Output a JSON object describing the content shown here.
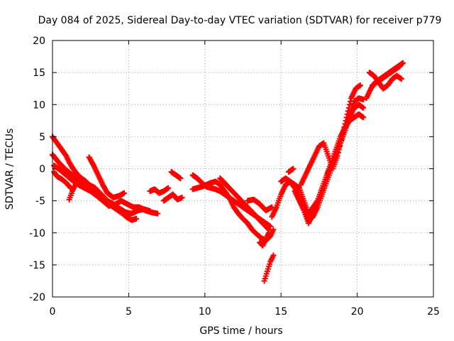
{
  "chart_data": {
    "type": "scatter",
    "title": "Day 084 of 2025, Sidereal Day-to-day VTEC variation (SDTVAR) for receiver p779",
    "xlabel": "GPS time / hours",
    "ylabel": "SDTVAR / TECUs",
    "xlim": [
      0,
      25
    ],
    "ylim": [
      -20,
      20
    ],
    "xticks": [
      "0",
      "5",
      "10",
      "15",
      "20",
      "25"
    ],
    "yticks": [
      "-20",
      "-15",
      "-10",
      "-5",
      "0",
      "5",
      "10",
      "15",
      "20"
    ],
    "grid": true,
    "marker": "+",
    "color": "#ff0000",
    "series": [
      {
        "tracks": [
          {
            "x": [
              0.0,
              0.3,
              0.6,
              0.9,
              1.1,
              1.3,
              1.6,
              1.9,
              2.2,
              2.5,
              2.8,
              3.1,
              3.4,
              3.7,
              4.0,
              4.3,
              4.6,
              4.9,
              5.2,
              5.5
            ],
            "y": [
              5.0,
              4.0,
              3.0,
              2.0,
              1.0,
              0.2,
              -0.8,
              -1.5,
              -2.0,
              -2.8,
              -3.5,
              -4.2,
              -5.0,
              -5.5,
              -6.0,
              -6.5,
              -7.0,
              -7.6,
              -8.0,
              -7.8
            ]
          },
          {
            "x": [
              0.0,
              0.4,
              0.8,
              1.2,
              1.6,
              2.0,
              2.4,
              2.8,
              3.2,
              3.6,
              4.0,
              4.4,
              4.8,
              5.2,
              5.6,
              6.0,
              6.4
            ],
            "y": [
              2.2,
              1.0,
              0.0,
              -0.8,
              -1.5,
              -2.0,
              -2.5,
              -3.0,
              -4.0,
              -5.0,
              -5.5,
              -6.2,
              -6.8,
              -7.0,
              -6.5,
              -6.3,
              -6.6
            ]
          },
          {
            "x": [
              0.1,
              0.5,
              0.9,
              1.3,
              1.7,
              2.1,
              2.5,
              2.9,
              3.3,
              3.7,
              4.1,
              4.5,
              4.9,
              5.3,
              5.7,
              6.1,
              6.5,
              6.9
            ],
            "y": [
              0.5,
              -0.2,
              -1.0,
              -1.8,
              -2.5,
              -3.0,
              -3.5,
              -4.2,
              -5.0,
              -5.8,
              -5.6,
              -5.0,
              -5.5,
              -6.0,
              -6.0,
              -6.5,
              -6.8,
              -7.0
            ]
          },
          {
            "x": [
              0.1,
              0.3,
              0.6,
              0.9,
              1.2
            ],
            "y": [
              -0.5,
              -1.2,
              -1.6,
              -2.2,
              -3.0
            ]
          },
          {
            "x": [
              1.1,
              1.3,
              1.5
            ],
            "y": [
              -4.8,
              -3.5,
              -2.5
            ]
          },
          {
            "x": [
              2.4,
              2.7,
              3.0,
              3.3,
              3.6,
              4.0,
              4.4,
              4.7
            ],
            "y": [
              1.8,
              0.5,
              -1.0,
              -2.5,
              -3.8,
              -4.5,
              -4.2,
              -3.8
            ]
          },
          {
            "x": [
              7.3,
              7.6,
              7.9,
              8.2,
              8.5
            ],
            "y": [
              -5.0,
              -4.5,
              -4.0,
              -4.8,
              -4.5
            ]
          },
          {
            "x": [
              6.4,
              6.7,
              7.0,
              7.3,
              7.6
            ],
            "y": [
              -3.5,
              -3.2,
              -3.8,
              -3.5,
              -3.0
            ]
          },
          {
            "x": [
              7.8,
              8.1,
              8.4
            ],
            "y": [
              -0.5,
              -1.0,
              -1.5
            ]
          },
          {
            "x": [
              9.2,
              9.5,
              9.8,
              10.1,
              10.4,
              10.7,
              11.0,
              11.3,
              11.6,
              11.9,
              12.2,
              12.5,
              12.8,
              13.1,
              13.4,
              13.7,
              14.0,
              14.3,
              14.5
            ],
            "y": [
              -3.2,
              -3.0,
              -2.8,
              -2.5,
              -2.2,
              -2.0,
              -2.5,
              -3.5,
              -4.5,
              -6.0,
              -7.0,
              -7.8,
              -8.5,
              -9.5,
              -10.2,
              -10.8,
              -11.2,
              -10.5,
              -9.5
            ]
          },
          {
            "x": [
              9.2,
              9.5,
              9.8,
              10.1,
              10.4,
              10.7,
              11.0,
              11.3,
              11.6,
              11.9,
              12.2,
              12.5,
              12.8,
              13.1,
              13.4,
              13.7,
              14.0,
              14.3
            ],
            "y": [
              -1.0,
              -1.5,
              -2.2,
              -2.8,
              -3.0,
              -3.2,
              -3.5,
              -4.0,
              -4.5,
              -5.0,
              -5.5,
              -6.0,
              -6.5,
              -7.0,
              -7.5,
              -8.0,
              -8.5,
              -9.0
            ]
          },
          {
            "x": [
              11.0,
              11.4,
              11.8,
              12.2,
              12.6,
              13.0,
              13.4,
              13.8,
              14.2
            ],
            "y": [
              -1.5,
              -2.5,
              -3.5,
              -4.5,
              -5.5,
              -6.5,
              -7.5,
              -8.5,
              -9.5
            ]
          },
          {
            "x": [
              12.8,
              13.2,
              13.6,
              14.0,
              14.4
            ],
            "y": [
              -5.0,
              -4.8,
              -5.5,
              -6.5,
              -6.0
            ]
          },
          {
            "x": [
              13.9,
              14.1,
              14.3,
              14.5
            ],
            "y": [
              -17.5,
              -16.0,
              -14.5,
              -13.5
            ]
          },
          {
            "x": [
              13.6,
              13.8,
              14.0,
              14.2
            ],
            "y": [
              -11.5,
              -12.0,
              -11.0,
              -10.0
            ]
          },
          {
            "x": [
              14.4,
              14.7,
              15.0,
              15.3,
              15.6,
              15.9,
              16.2,
              16.5,
              16.8,
              17.1,
              17.4,
              17.7,
              18.0,
              18.3,
              18.6,
              18.9,
              19.2,
              19.5,
              19.8,
              20.1,
              20.4
            ],
            "y": [
              -7.5,
              -6.0,
              -4.0,
              -2.5,
              -2.0,
              -2.5,
              -3.0,
              -5.0,
              -7.0,
              -6.0,
              -5.0,
              -3.0,
              -1.0,
              1.0,
              3.0,
              5.0,
              6.5,
              7.5,
              8.0,
              8.5,
              8.0
            ]
          },
          {
            "x": [
              15.0,
              15.3,
              15.6,
              15.9,
              16.2,
              16.5,
              16.8,
              17.1,
              17.4,
              17.7,
              18.0,
              18.3,
              18.6,
              18.9,
              19.2,
              19.5,
              19.8,
              20.1,
              20.4
            ],
            "y": [
              -2.0,
              -1.5,
              -2.0,
              -3.0,
              -4.5,
              -6.0,
              -8.0,
              -7.5,
              -6.0,
              -4.0,
              -2.0,
              0.0,
              2.0,
              4.0,
              6.0,
              8.0,
              9.5,
              10.0,
              9.5
            ]
          },
          {
            "x": [
              15.9,
              16.2,
              16.5,
              16.8,
              17.1,
              17.4,
              17.7,
              18.0,
              18.3,
              18.6,
              18.9,
              19.2,
              19.5,
              19.8,
              20.1,
              20.4
            ],
            "y": [
              -3.5,
              -5.0,
              -6.5,
              -8.5,
              -7.0,
              -5.0,
              -3.0,
              -1.0,
              0.5,
              2.0,
              4.0,
              6.0,
              8.5,
              10.5,
              11.0,
              10.8
            ]
          },
          {
            "x": [
              16.3,
              16.6,
              16.9,
              17.2,
              17.5,
              17.8,
              18.1,
              18.4,
              18.7,
              19.0,
              19.3,
              19.6,
              19.9,
              20.2
            ],
            "y": [
              -2.5,
              -1.0,
              0.5,
              2.0,
              3.5,
              4.0,
              2.0,
              0.0,
              2.0,
              5.0,
              8.0,
              11.0,
              12.5,
              13.0
            ]
          },
          {
            "x": [
              15.5,
              15.8
            ],
            "y": [
              -0.5,
              0.0
            ]
          },
          {
            "x": [
              20.6,
              20.9,
              21.2,
              21.5,
              21.8,
              22.1,
              22.4,
              22.7,
              23.0
            ],
            "y": [
              11.0,
              12.5,
              13.5,
              14.0,
              14.5,
              15.0,
              15.5,
              16.0,
              16.5
            ]
          },
          {
            "x": [
              20.8,
              21.1,
              21.4,
              21.7,
              22.0,
              22.3,
              22.6,
              22.9
            ],
            "y": [
              15.0,
              14.5,
              13.5,
              12.5,
              13.0,
              14.0,
              14.5,
              14.0
            ]
          },
          {
            "x": [
              21.0,
              21.3,
              21.6,
              21.9,
              22.2,
              22.5,
              22.8
            ],
            "y": [
              13.0,
              13.5,
              14.0,
              14.5,
              15.0,
              15.5,
              16.0
            ]
          }
        ]
      }
    ]
  }
}
